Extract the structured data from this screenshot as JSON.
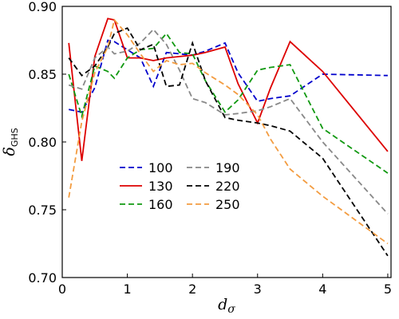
{
  "chart_data": {
    "type": "line",
    "xlabel": "d",
    "xlabel_sub": "σ",
    "ylabel": "δ",
    "ylabel_sub": "GHS",
    "xlim": [
      0,
      5.05
    ],
    "ylim": [
      0.7,
      0.9
    ],
    "xticks": [
      0,
      1,
      2,
      3,
      4,
      5
    ],
    "yticks": [
      0.7,
      0.75,
      0.8,
      0.85,
      0.9
    ],
    "ytick_labels": [
      "0.70",
      "0.75",
      "0.80",
      "0.85",
      "0.90"
    ],
    "grid": false,
    "legend_placement": "center-left",
    "legend_columns": 2,
    "x": [
      0.1,
      0.3,
      0.5,
      0.7,
      0.8,
      1.0,
      1.2,
      1.4,
      1.6,
      1.8,
      2.0,
      2.2,
      2.5,
      2.7,
      3.0,
      3.2,
      3.5,
      4.0,
      5.0
    ],
    "series": [
      {
        "name": "100",
        "color": "#0000cc",
        "dash": "dashed",
        "values": [
          0.824,
          0.822,
          0.84,
          0.875,
          0.874,
          0.868,
          0.862,
          0.841,
          0.866,
          0.865,
          0.864,
          0.867,
          0.873,
          0.851,
          0.83,
          0.832,
          0.834,
          0.85,
          0.849
        ]
      },
      {
        "name": "130",
        "color": "#dd0000",
        "dash": "solid",
        "values": [
          0.873,
          0.786,
          0.863,
          0.891,
          0.89,
          0.862,
          0.862,
          0.86,
          0.862,
          0.863,
          0.864,
          0.866,
          0.87,
          0.843,
          0.814,
          0.84,
          0.874,
          0.852,
          0.793
        ]
      },
      {
        "name": "160",
        "color": "#119911",
        "dash": "dashed",
        "values": [
          0.85,
          0.819,
          0.856,
          0.852,
          0.847,
          0.862,
          0.868,
          0.869,
          0.88,
          0.866,
          0.865,
          0.845,
          0.822,
          0.831,
          0.853,
          0.855,
          0.857,
          0.81,
          0.777
        ]
      },
      {
        "name": "190",
        "color": "#888888",
        "dash": "dashed",
        "values": [
          0.842,
          0.839,
          0.862,
          0.87,
          0.865,
          0.867,
          0.873,
          0.883,
          0.872,
          0.853,
          0.832,
          0.829,
          0.82,
          0.821,
          0.823,
          0.826,
          0.832,
          0.8,
          0.747
        ]
      },
      {
        "name": "220",
        "color": "#000000",
        "dash": "dashed",
        "values": [
          0.862,
          0.849,
          0.856,
          0.87,
          0.88,
          0.884,
          0.868,
          0.872,
          0.841,
          0.842,
          0.873,
          0.845,
          0.818,
          0.816,
          0.814,
          0.812,
          0.808,
          0.788,
          0.716
        ]
      },
      {
        "name": "250",
        "color": "#f39c40",
        "dash": "dashed",
        "values": [
          0.759,
          0.815,
          0.851,
          0.87,
          0.89,
          0.879,
          0.865,
          0.852,
          0.86,
          0.857,
          0.858,
          0.851,
          0.842,
          0.835,
          0.82,
          0.802,
          0.78,
          0.76,
          0.725
        ]
      }
    ]
  }
}
